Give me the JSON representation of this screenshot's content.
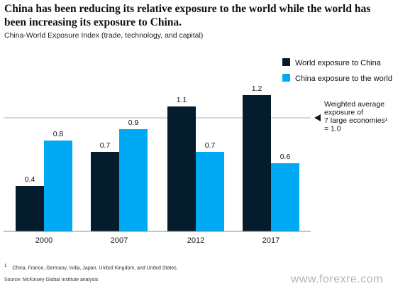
{
  "title": "China has been reducing its relative exposure to the world while the world has been increasing its exposure to China.",
  "subtitle": "China-World Exposure Index (trade, technology, and capital)",
  "chart_data": {
    "type": "bar",
    "categories": [
      "2000",
      "2007",
      "2012",
      "2017"
    ],
    "series": [
      {
        "name": "World exposure to China",
        "values": [
          0.4,
          0.7,
          1.1,
          1.2
        ],
        "color": "#051c2c"
      },
      {
        "name": "China exposure to the world",
        "values": [
          0.8,
          0.9,
          0.7,
          0.6
        ],
        "color": "#00a9f4"
      }
    ],
    "data_labels": [
      [
        "0.4",
        "0.7",
        "1.1",
        "1.2"
      ],
      [
        "0.8",
        "0.9",
        "0.7",
        "0.6"
      ]
    ],
    "ylim": [
      0,
      1.3
    ],
    "grid": false,
    "legend_position": "top-right",
    "reference_line": {
      "value": 1.0,
      "label_lines": [
        "Weighted average",
        "exposure of",
        "7 large economies¹",
        "= 1.0"
      ]
    }
  },
  "footnote_marker": "1",
  "footnote": "China, France, Germany, India, Japan, United Kingdom, and United States.",
  "source": "Source: McKinsey Global Institute analysis",
  "watermark": "www.forexre.com"
}
